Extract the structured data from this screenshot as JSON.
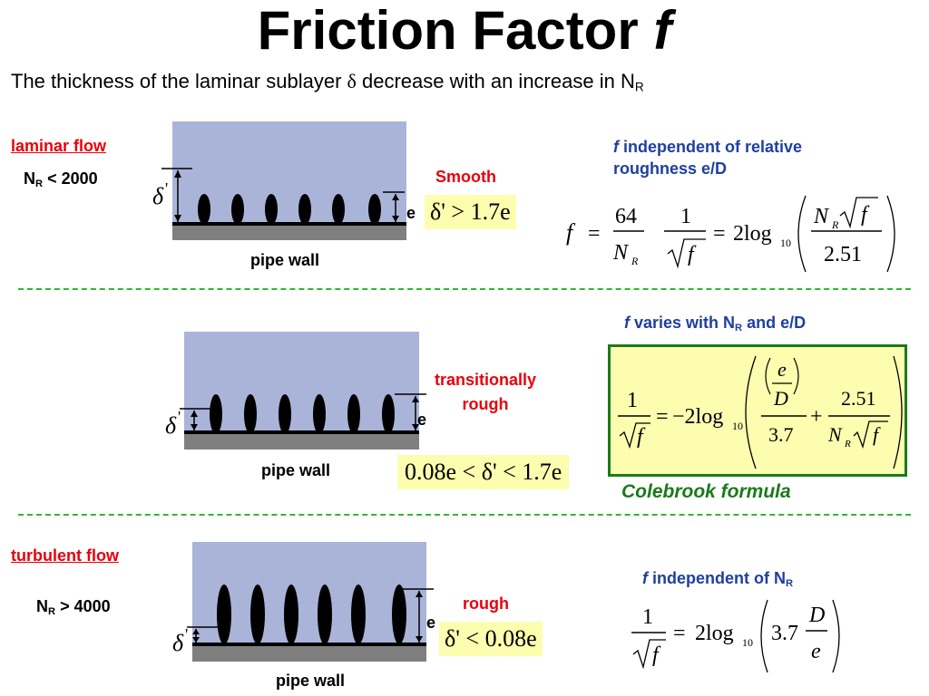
{
  "title": {
    "text": "Friction Factor",
    "symbol": "f"
  },
  "subtitle": {
    "before": "The thickness of the laminar sublayer ",
    "delta": "δ",
    "after": " decrease with an increase in N",
    "subscript": "R"
  },
  "labels": {
    "delta_prime": "δ",
    "prime": "'",
    "e": "e",
    "pipe_wall": "pipe wall"
  },
  "laminar": {
    "heading": "laminar flow",
    "nr_prefix": "N",
    "nr_sub": "R",
    "nr_condition": " < 2000",
    "regime": "Smooth",
    "inequality": "δ' > 1.7e",
    "note_f": "f",
    "note_text": " independent of relative roughness e/D",
    "eq_f_lhs": "f",
    "eq_64": "64",
    "eq_one": "1",
    "eq_two_log": "2log",
    "eq_log_base": "10",
    "eq_251": "2.51"
  },
  "transitional": {
    "note_f": "f",
    "note_text_1": " varies with N",
    "note_sub": "R",
    "note_text_2": " and e/D",
    "regime_line1": "transitionally",
    "regime_line2": "rough",
    "inequality": "0.08e < δ' < 1.7e",
    "eq_one": "1",
    "eq_minus_two_log": "−2log",
    "eq_log_base": "10",
    "eq_e": "e",
    "eq_D": "D",
    "eq_37": "3.7",
    "eq_251": "2.51",
    "formula_name": "Colebrook formula"
  },
  "turbulent": {
    "heading": "turbulent flow",
    "nr_prefix": "N",
    "nr_sub": "R",
    "nr_condition": " > 4000",
    "regime": "rough",
    "inequality": "δ' < 0.08e",
    "note_f": "f",
    "note_text": " independent of N",
    "note_sub": "R",
    "eq_one": "1",
    "eq_two_log": "2log",
    "eq_log_base": "10",
    "eq_37": "3.7",
    "eq_D": "D",
    "eq_e": "e"
  },
  "colors": {
    "fluid": "#aab4d9",
    "wall": "#7f7f7f",
    "highlight": "#fdfdb0",
    "red_text": "#e8000b",
    "blue_text": "#1f3fa0",
    "green": "#1a7a1a",
    "divider": "#2eb82e"
  }
}
